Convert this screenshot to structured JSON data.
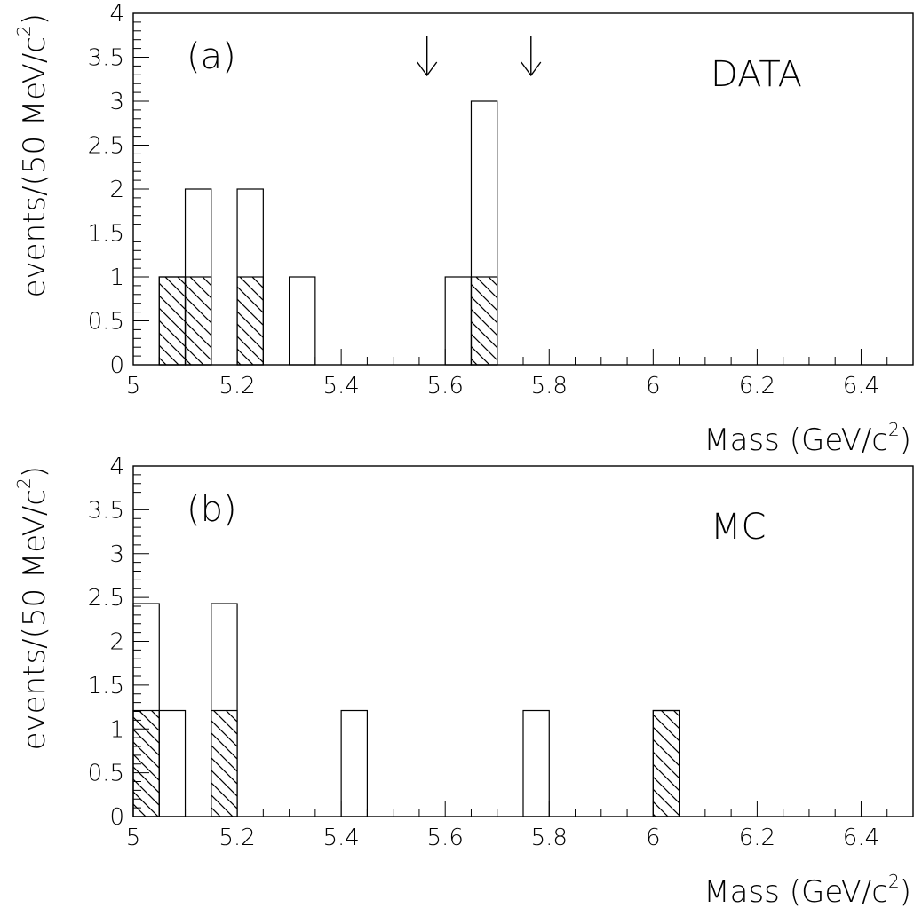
{
  "chart_data": [
    {
      "type": "bar",
      "panel_label": "(a)",
      "sample_label": "DATA",
      "xlabel": {
        "text": "Mass  (GeV/c",
        "sup": "2",
        "close": ")"
      },
      "ylabel": {
        "text": "events/(50 MeV/c",
        "sup": "2",
        "close": ")"
      },
      "xlim": [
        5,
        6.5
      ],
      "ylim": [
        0,
        4
      ],
      "bin_width": 0.05,
      "x_ticks": [
        "5",
        "5.2",
        "5.4",
        "5.6",
        "5.8",
        "6",
        "6.2",
        "6.4"
      ],
      "y_ticks": [
        "0",
        "0.5",
        "1",
        "1.5",
        "2",
        "2.5",
        "3",
        "3.5",
        "4"
      ],
      "arrows_at": [
        5.565,
        5.765
      ],
      "series": [
        {
          "style": "open",
          "bins": [
            {
              "low": 5.05,
              "value": 1
            },
            {
              "low": 5.1,
              "value": 2
            },
            {
              "low": 5.2,
              "value": 2
            },
            {
              "low": 5.3,
              "value": 1
            },
            {
              "low": 5.6,
              "value": 1
            },
            {
              "low": 5.65,
              "value": 3
            }
          ]
        },
        {
          "style": "hatched",
          "bins": [
            {
              "low": 5.05,
              "value": 1
            },
            {
              "low": 5.1,
              "value": 1
            },
            {
              "low": 5.2,
              "value": 1
            },
            {
              "low": 5.65,
              "value": 1
            }
          ]
        }
      ]
    },
    {
      "type": "bar",
      "panel_label": "(b)",
      "sample_label": "MC",
      "xlabel": {
        "text": "Mass  (GeV/c",
        "sup": "2",
        "close": ")"
      },
      "ylabel": {
        "text": "events/(50 MeV/c",
        "sup": "2",
        "close": ")"
      },
      "xlim": [
        5,
        6.5
      ],
      "ylim": [
        0,
        4
      ],
      "bin_width": 0.05,
      "x_ticks": [
        "5",
        "5.2",
        "5.4",
        "5.6",
        "5.8",
        "6",
        "6.2",
        "6.4"
      ],
      "y_ticks": [
        "0",
        "0.5",
        "1",
        "1.5",
        "2",
        "2.5",
        "3",
        "3.5",
        "4"
      ],
      "arrows_at": [],
      "series": [
        {
          "style": "open",
          "bins": [
            {
              "low": 5.0,
              "value": 2.43
            },
            {
              "low": 5.05,
              "value": 1.21
            },
            {
              "low": 5.15,
              "value": 2.43
            },
            {
              "low": 5.4,
              "value": 1.21
            },
            {
              "low": 5.75,
              "value": 1.21
            },
            {
              "low": 6.0,
              "value": 1.21
            }
          ]
        },
        {
          "style": "hatched",
          "bins": [
            {
              "low": 5.0,
              "value": 1.21
            },
            {
              "low": 5.15,
              "value": 1.21
            },
            {
              "low": 6.0,
              "value": 1.21
            }
          ]
        }
      ]
    }
  ]
}
